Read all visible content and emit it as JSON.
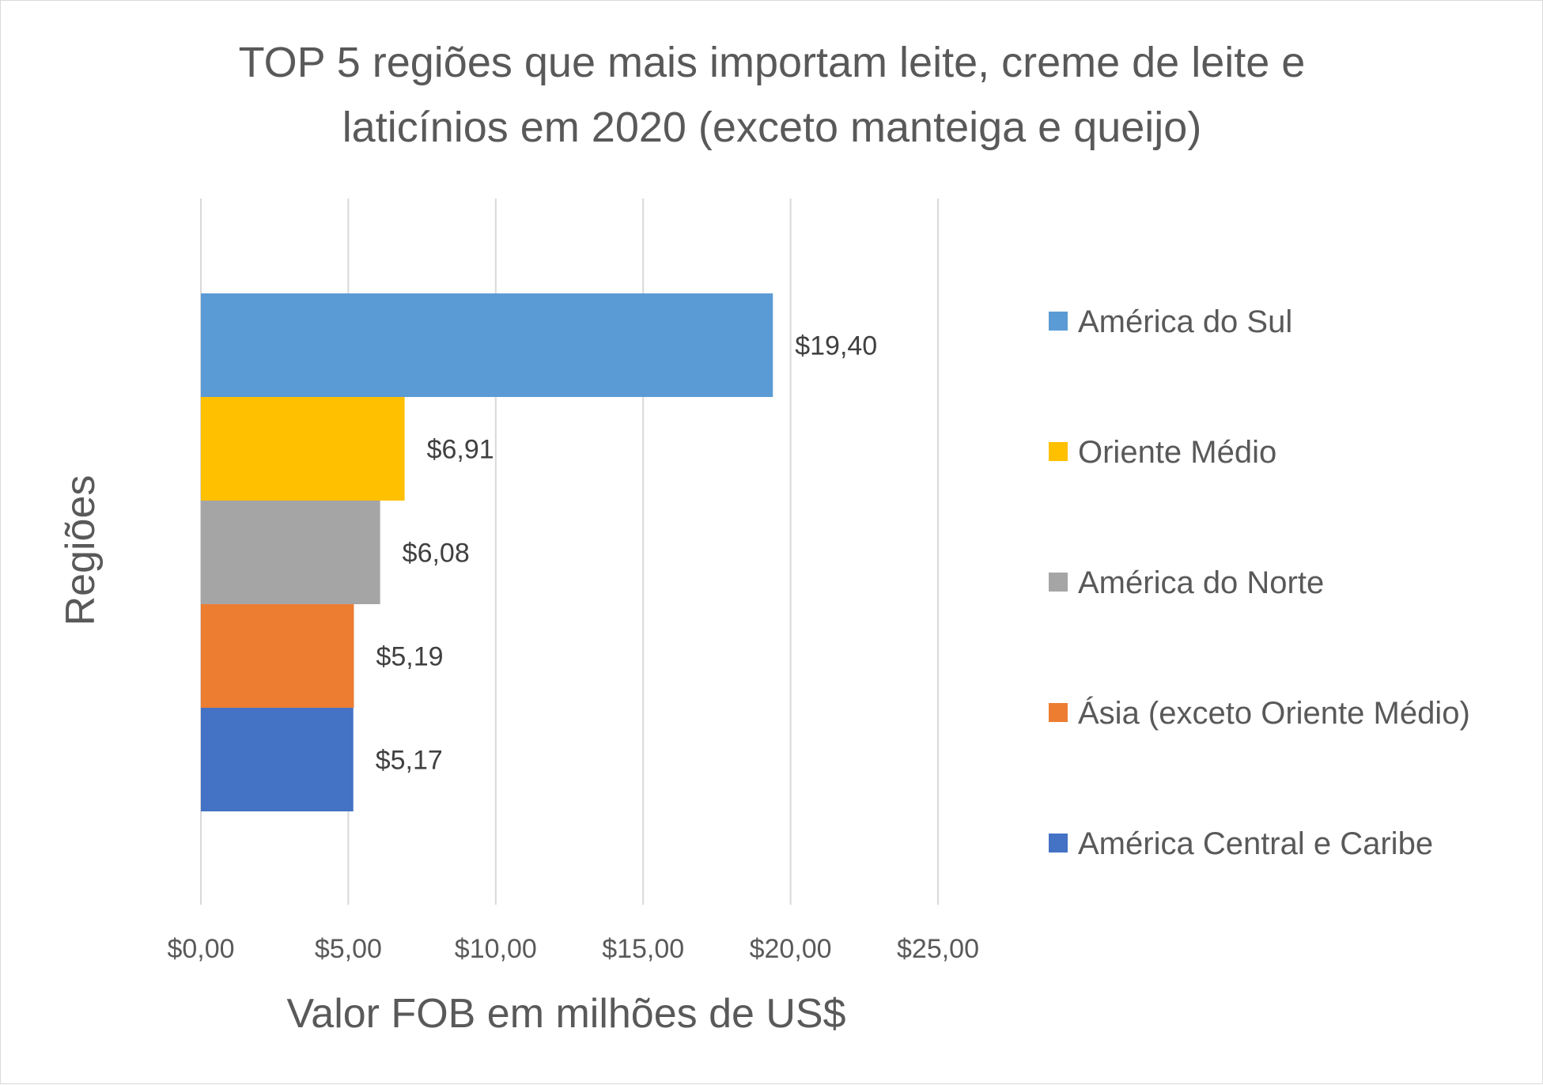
{
  "chart_data": {
    "type": "bar",
    "orientation": "horizontal",
    "title_lines": [
      "TOP 5 regiões que mais importam leite, creme de leite e",
      "laticínios em 2020 (exceto manteiga e queijo)"
    ],
    "xlabel": "Valor FOB em milhões de US$",
    "ylabel": "Regiões",
    "xlim": [
      0,
      25
    ],
    "xticks": [
      0,
      5,
      10,
      15,
      20,
      25
    ],
    "xtick_labels": [
      "$0,00",
      "$5,00",
      "$10,00",
      "$15,00",
      "$20,00",
      "$25,00"
    ],
    "grid": "vertical",
    "legend_position": "right",
    "series": [
      {
        "name": "América do Sul",
        "value": 19.4,
        "label": "$19,40",
        "color": "#5B9BD5"
      },
      {
        "name": "Oriente Médio",
        "value": 6.91,
        "label": "$6,91",
        "color": "#FFC000"
      },
      {
        "name": "América do Norte",
        "value": 6.08,
        "label": "$6,08",
        "color": "#A5A5A5"
      },
      {
        "name": "Ásia (exceto Oriente Médio)",
        "value": 5.19,
        "label": "$5,19",
        "color": "#ED7D31"
      },
      {
        "name": "América Central e Caribe",
        "value": 5.17,
        "label": "$5,17",
        "color": "#4472C4"
      }
    ]
  }
}
